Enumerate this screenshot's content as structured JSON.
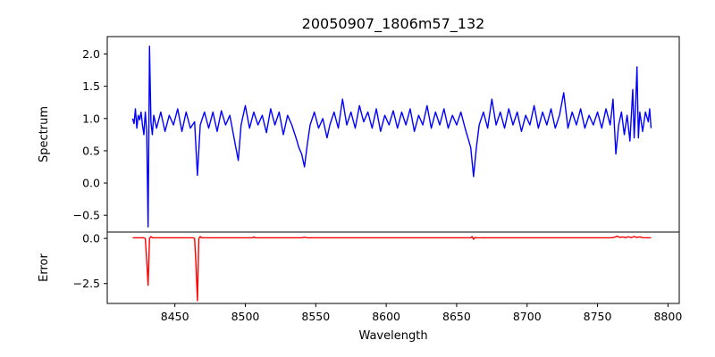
{
  "chart_data": {
    "type": "line",
    "title": "20050907_1806m57_132",
    "xlabel": "Wavelength",
    "xlim": [
      8402,
      8808
    ],
    "xticks": [
      8450,
      8500,
      8550,
      8600,
      8650,
      8700,
      8750,
      8800
    ],
    "grid": false,
    "panels": [
      {
        "name": "spectrum-panel",
        "ylabel": "Spectrum",
        "ylim": [
          -0.76,
          2.27
        ],
        "yticks": [
          -0.5,
          0.0,
          0.5,
          1.0,
          1.5,
          2.0
        ],
        "tick_format": "fixed1",
        "series": [
          {
            "color": "#0000ff",
            "points": [
              [
                8420,
                1.0
              ],
              [
                8421,
                0.92
              ],
              [
                8422,
                1.15
              ],
              [
                8423,
                0.85
              ],
              [
                8424,
                1.05
              ],
              [
                8425,
                0.98
              ],
              [
                8426,
                1.1
              ],
              [
                8427,
                0.9
              ],
              [
                8428,
                0.75
              ],
              [
                8429,
                1.1
              ],
              [
                8430,
                0.8
              ],
              [
                8431,
                -0.68
              ],
              [
                8432,
                2.12
              ],
              [
                8433,
                0.95
              ],
              [
                8434,
                0.75
              ],
              [
                8435,
                1.05
              ],
              [
                8437,
                0.85
              ],
              [
                8440,
                1.1
              ],
              [
                8443,
                0.8
              ],
              [
                8446,
                1.05
              ],
              [
                8449,
                0.9
              ],
              [
                8452,
                1.15
              ],
              [
                8455,
                0.8
              ],
              [
                8458,
                1.1
              ],
              [
                8461,
                0.85
              ],
              [
                8464,
                0.95
              ],
              [
                8466,
                0.12
              ],
              [
                8468,
                0.9
              ],
              [
                8471,
                1.1
              ],
              [
                8474,
                0.85
              ],
              [
                8477,
                1.1
              ],
              [
                8480,
                0.8
              ],
              [
                8483,
                1.12
              ],
              [
                8486,
                0.9
              ],
              [
                8489,
                1.05
              ],
              [
                8492,
                0.7
              ],
              [
                8495,
                0.35
              ],
              [
                8497,
                0.9
              ],
              [
                8500,
                1.2
              ],
              [
                8503,
                0.85
              ],
              [
                8506,
                1.1
              ],
              [
                8509,
                0.9
              ],
              [
                8512,
                1.05
              ],
              [
                8515,
                0.78
              ],
              [
                8518,
                1.15
              ],
              [
                8521,
                0.9
              ],
              [
                8524,
                1.1
              ],
              [
                8527,
                0.75
              ],
              [
                8530,
                1.05
              ],
              [
                8533,
                0.9
              ],
              [
                8536,
                0.7
              ],
              [
                8538,
                0.55
              ],
              [
                8540,
                0.45
              ],
              [
                8542,
                0.25
              ],
              [
                8544,
                0.6
              ],
              [
                8546,
                0.9
              ],
              [
                8549,
                1.1
              ],
              [
                8552,
                0.85
              ],
              [
                8555,
                1.0
              ],
              [
                8558,
                0.7
              ],
              [
                8560,
                0.9
              ],
              [
                8563,
                1.1
              ],
              [
                8566,
                0.85
              ],
              [
                8569,
                1.3
              ],
              [
                8572,
                0.9
              ],
              [
                8575,
                1.1
              ],
              [
                8578,
                0.85
              ],
              [
                8581,
                1.2
              ],
              [
                8584,
                0.95
              ],
              [
                8587,
                1.1
              ],
              [
                8590,
                0.85
              ],
              [
                8593,
                1.15
              ],
              [
                8596,
                0.8
              ],
              [
                8599,
                1.05
              ],
              [
                8602,
                0.9
              ],
              [
                8605,
                1.12
              ],
              [
                8608,
                0.85
              ],
              [
                8611,
                1.1
              ],
              [
                8614,
                0.9
              ],
              [
                8617,
                1.15
              ],
              [
                8620,
                0.8
              ],
              [
                8623,
                1.05
              ],
              [
                8626,
                0.9
              ],
              [
                8629,
                1.2
              ],
              [
                8632,
                0.85
              ],
              [
                8635,
                1.1
              ],
              [
                8638,
                0.9
              ],
              [
                8641,
                1.15
              ],
              [
                8644,
                0.85
              ],
              [
                8647,
                1.05
              ],
              [
                8650,
                0.9
              ],
              [
                8653,
                1.1
              ],
              [
                8656,
                0.85
              ],
              [
                8658,
                0.7
              ],
              [
                8660,
                0.55
              ],
              [
                8662,
                0.1
              ],
              [
                8664,
                0.55
              ],
              [
                8666,
                0.9
              ],
              [
                8669,
                1.1
              ],
              [
                8672,
                0.85
              ],
              [
                8675,
                1.3
              ],
              [
                8678,
                0.9
              ],
              [
                8681,
                1.1
              ],
              [
                8684,
                0.85
              ],
              [
                8687,
                1.15
              ],
              [
                8690,
                0.9
              ],
              [
                8693,
                1.1
              ],
              [
                8696,
                0.8
              ],
              [
                8699,
                1.05
              ],
              [
                8702,
                0.9
              ],
              [
                8705,
                1.2
              ],
              [
                8708,
                0.85
              ],
              [
                8711,
                1.1
              ],
              [
                8714,
                0.9
              ],
              [
                8717,
                1.15
              ],
              [
                8720,
                0.85
              ],
              [
                8723,
                1.05
              ],
              [
                8726,
                1.4
              ],
              [
                8729,
                0.85
              ],
              [
                8732,
                1.1
              ],
              [
                8735,
                0.9
              ],
              [
                8738,
                1.15
              ],
              [
                8741,
                0.85
              ],
              [
                8744,
                1.05
              ],
              [
                8747,
                0.9
              ],
              [
                8750,
                1.1
              ],
              [
                8753,
                0.85
              ],
              [
                8756,
                1.15
              ],
              [
                8759,
                0.9
              ],
              [
                8761,
                1.3
              ],
              [
                8763,
                0.45
              ],
              [
                8765,
                0.9
              ],
              [
                8767,
                1.1
              ],
              [
                8769,
                0.75
              ],
              [
                8771,
                1.05
              ],
              [
                8773,
                0.65
              ],
              [
                8775,
                1.45
              ],
              [
                8776,
                0.7
              ],
              [
                8777,
                1.2
              ],
              [
                8778,
                1.8
              ],
              [
                8779,
                0.7
              ],
              [
                8780,
                1.1
              ],
              [
                8782,
                0.8
              ],
              [
                8784,
                1.1
              ],
              [
                8786,
                0.95
              ],
              [
                8787,
                1.15
              ],
              [
                8788,
                0.85
              ]
            ]
          }
        ]
      },
      {
        "name": "error-panel",
        "ylabel": "Error",
        "ylim": [
          -3.6,
          0.35
        ],
        "yticks": [
          -2.5,
          0.0
        ],
        "tick_format": "fixed1",
        "series": [
          {
            "color": "#ff0000",
            "points": [
              [
                8420,
                0.03
              ],
              [
                8428,
                0.03
              ],
              [
                8429,
                0.0
              ],
              [
                8430,
                -1.2
              ],
              [
                8431,
                -2.6
              ],
              [
                8432,
                0.0
              ],
              [
                8433,
                0.1
              ],
              [
                8434,
                0.03
              ],
              [
                8463,
                0.03
              ],
              [
                8464,
                0.0
              ],
              [
                8465,
                -1.5
              ],
              [
                8466,
                -3.45
              ],
              [
                8467,
                0.0
              ],
              [
                8468,
                0.1
              ],
              [
                8469,
                0.03
              ],
              [
                8505,
                0.03
              ],
              [
                8506,
                0.08
              ],
              [
                8507,
                0.03
              ],
              [
                8540,
                0.03
              ],
              [
                8542,
                0.06
              ],
              [
                8544,
                0.03
              ],
              [
                8660,
                0.03
              ],
              [
                8661,
                0.1
              ],
              [
                8662,
                -0.05
              ],
              [
                8663,
                0.05
              ],
              [
                8664,
                0.03
              ],
              [
                8760,
                0.03
              ],
              [
                8762,
                0.06
              ],
              [
                8764,
                0.12
              ],
              [
                8766,
                0.05
              ],
              [
                8768,
                0.08
              ],
              [
                8770,
                0.04
              ],
              [
                8772,
                0.09
              ],
              [
                8774,
                0.04
              ],
              [
                8776,
                0.1
              ],
              [
                8778,
                0.05
              ],
              [
                8780,
                0.08
              ],
              [
                8782,
                0.04
              ],
              [
                8788,
                0.03
              ]
            ]
          }
        ]
      }
    ]
  }
}
